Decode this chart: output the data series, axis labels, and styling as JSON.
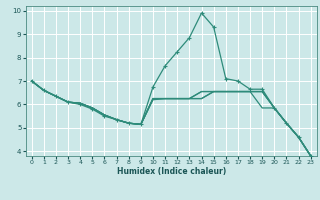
{
  "bg_color": "#cce8e8",
  "grid_color": "#ffffff",
  "line_color": "#2e8b7a",
  "xlabel": "Humidex (Indice chaleur)",
  "xlim": [
    -0.5,
    23.5
  ],
  "ylim": [
    3.8,
    10.2
  ],
  "xticks": [
    0,
    1,
    2,
    3,
    4,
    5,
    6,
    7,
    8,
    9,
    10,
    11,
    12,
    13,
    14,
    15,
    16,
    17,
    18,
    19,
    20,
    21,
    22,
    23
  ],
  "yticks": [
    4,
    5,
    6,
    7,
    8,
    9,
    10
  ],
  "series": [
    {
      "y": [
        7.0,
        6.6,
        6.35,
        6.1,
        6.05,
        5.85,
        5.55,
        5.35,
        5.2,
        5.15,
        6.25,
        6.25,
        6.25,
        6.25,
        6.25,
        6.55,
        6.55,
        6.55,
        6.55,
        6.55,
        5.85,
        5.2,
        4.6,
        3.8
      ],
      "ls": "-",
      "marker": null,
      "lw": 0.9
    },
    {
      "y": [
        7.0,
        6.6,
        6.35,
        6.1,
        6.05,
        5.85,
        5.55,
        5.35,
        5.2,
        5.15,
        6.25,
        6.25,
        6.25,
        6.25,
        6.55,
        6.55,
        6.55,
        6.55,
        6.55,
        6.55,
        5.85,
        5.2,
        4.6,
        3.8
      ],
      "ls": "-",
      "marker": null,
      "lw": 0.9
    },
    {
      "y": [
        7.0,
        6.6,
        6.35,
        6.1,
        6.05,
        5.85,
        5.55,
        5.35,
        5.2,
        5.15,
        6.25,
        6.25,
        6.25,
        6.25,
        6.55,
        6.55,
        6.55,
        6.55,
        6.55,
        6.55,
        5.85,
        5.2,
        4.6,
        3.8
      ],
      "ls": "-",
      "marker": null,
      "lw": 0.9
    },
    {
      "y": [
        7.0,
        6.6,
        6.35,
        6.1,
        6.05,
        5.85,
        5.55,
        5.35,
        5.2,
        5.15,
        6.2,
        6.25,
        6.25,
        6.25,
        6.25,
        6.55,
        6.55,
        6.55,
        6.55,
        5.85,
        5.85,
        5.2,
        4.6,
        3.8
      ],
      "ls": "-",
      "marker": null,
      "lw": 0.9
    },
    {
      "y": [
        7.0,
        6.6,
        6.35,
        6.1,
        6.0,
        5.8,
        5.5,
        5.35,
        5.2,
        5.15,
        6.75,
        7.65,
        8.25,
        8.85,
        9.9,
        9.3,
        7.1,
        7.0,
        6.65,
        6.65,
        5.85,
        5.2,
        4.6,
        3.8
      ],
      "ls": "-",
      "marker": "+",
      "lw": 0.9
    }
  ]
}
